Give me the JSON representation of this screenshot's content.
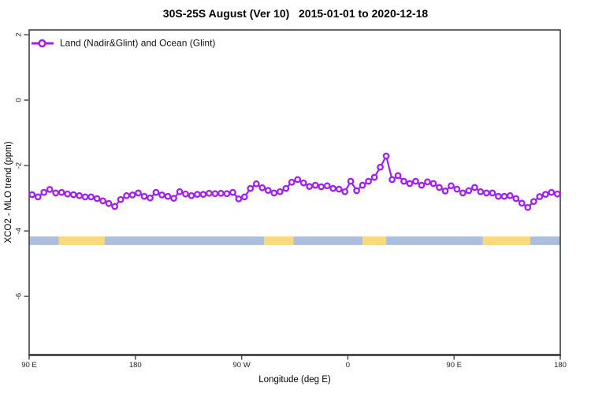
{
  "title": {
    "text": "30S-25S August (Ver 10)   2015-01-01 to 2020-12-18"
  },
  "legend": {
    "label": "Land (Nadir&Glint) and Ocean (Glint)",
    "position": "top-left"
  },
  "axes": {
    "x": {
      "title": "Longitude (deg E)",
      "ticks": [
        {
          "label": "90 E",
          "offset_deg": 0
        },
        {
          "label": "180",
          "offset_deg": 90
        },
        {
          "label": "90 W",
          "offset_deg": 180
        },
        {
          "label": "0",
          "offset_deg": 270
        },
        {
          "label": "90 E",
          "offset_deg": 360
        },
        {
          "label": "180",
          "offset_deg": 450
        }
      ],
      "wrap_note": "axis runs 90E -> 180 -> 90W -> 0 -> 90E -> 180 (450 deg span)"
    },
    "y": {
      "title": "XCO2 - MLO trend (ppm)",
      "ticks": [
        {
          "label": "2",
          "value": 2
        },
        {
          "label": "0",
          "value": 0
        },
        {
          "label": "-2",
          "value": -2
        },
        {
          "label": "-4",
          "value": -4
        },
        {
          "label": "-6",
          "value": -6
        }
      ]
    }
  },
  "colors": {
    "series": "#a020f0",
    "marker_fill": "#ffffff",
    "ocean_band": "#aabfde",
    "land_band": "#fcd87c",
    "frame": "#404040",
    "text": "#000000"
  },
  "chart_data": {
    "type": "line",
    "title": "30S-25S August (Ver 10)   2015-01-01 to 2020-12-18",
    "xlabel": "Longitude (deg E)",
    "ylabel": "XCO2 - MLO trend (ppm)",
    "ylim": [
      -7.78,
      2.145
    ],
    "xlim_offset_deg": [
      0,
      450
    ],
    "grid": false,
    "legend_position": "top-left-inside",
    "bin_width_deg": 5,
    "series": [
      {
        "name": "Land (Nadir&Glint) and Ocean (Glint)",
        "marker": "open-circle",
        "lon": [
          92.5,
          97.5,
          102.5,
          107.5,
          112.5,
          117.5,
          122.5,
          127.5,
          132.5,
          137.5,
          142.5,
          147.5,
          152.5,
          157.5,
          162.5,
          167.5,
          172.5,
          177.5,
          -177.5,
          -172.5,
          -167.5,
          -162.5,
          -157.5,
          -152.5,
          -147.5,
          -142.5,
          -137.5,
          -132.5,
          -127.5,
          -122.5,
          -117.5,
          -112.5,
          -107.5,
          -102.5,
          -97.5,
          -92.5,
          -87.5,
          -82.5,
          -77.5,
          -72.5,
          -67.5,
          -62.5,
          -57.5,
          -52.5,
          -47.5,
          -42.5,
          -37.5,
          -32.5,
          -27.5,
          -22.5,
          -17.5,
          -12.5,
          -7.5,
          -2.5,
          2.5,
          7.5,
          12.5,
          17.5,
          22.5,
          27.5,
          32.5,
          37.5,
          42.5,
          47.5,
          52.5,
          57.5,
          62.5,
          67.5,
          72.5,
          77.5,
          82.5,
          87.5,
          92.5,
          97.5,
          102.5,
          107.5,
          112.5,
          117.5,
          122.5,
          127.5,
          132.5,
          137.5,
          142.5,
          147.5,
          152.5,
          157.5,
          162.5,
          167.5,
          172.5,
          177.5
        ],
        "values": [
          -2.89,
          -2.96,
          -2.82,
          -2.73,
          -2.84,
          -2.82,
          -2.87,
          -2.89,
          -2.92,
          -2.96,
          -2.96,
          -3.01,
          -3.08,
          -3.16,
          -3.25,
          -3.04,
          -2.92,
          -2.9,
          -2.84,
          -2.94,
          -2.99,
          -2.82,
          -2.9,
          -2.94,
          -3.0,
          -2.8,
          -2.87,
          -2.92,
          -2.88,
          -2.88,
          -2.85,
          -2.86,
          -2.85,
          -2.86,
          -2.82,
          -3.02,
          -2.96,
          -2.7,
          -2.56,
          -2.68,
          -2.76,
          -2.84,
          -2.8,
          -2.7,
          -2.51,
          -2.43,
          -2.53,
          -2.64,
          -2.6,
          -2.65,
          -2.62,
          -2.7,
          -2.72,
          -2.8,
          -2.48,
          -2.77,
          -2.6,
          -2.48,
          -2.36,
          -2.05,
          -1.71,
          -2.43,
          -2.31,
          -2.48,
          -2.55,
          -2.48,
          -2.6,
          -2.5,
          -2.55,
          -2.67,
          -2.78,
          -2.62,
          -2.72,
          -2.84,
          -2.77,
          -2.67,
          -2.8,
          -2.84,
          -2.84,
          -2.94,
          -2.94,
          -2.92,
          -3.01,
          -3.15,
          -3.28,
          -3.1,
          -2.95,
          -2.88,
          -2.82,
          -2.87
        ]
      }
    ],
    "surface_band": {
      "y_top": -4.17,
      "y_bottom": -4.43,
      "segments": [
        {
          "surface": "ocean",
          "from_deg": 0,
          "to_deg": 25
        },
        {
          "surface": "land",
          "from_deg": 25,
          "to_deg": 64
        },
        {
          "surface": "ocean",
          "from_deg": 64,
          "to_deg": 199
        },
        {
          "surface": "land",
          "from_deg": 199,
          "to_deg": 224
        },
        {
          "surface": "ocean",
          "from_deg": 224,
          "to_deg": 282.5
        },
        {
          "surface": "land",
          "from_deg": 282.5,
          "to_deg": 302.5
        },
        {
          "surface": "ocean",
          "from_deg": 302.5,
          "to_deg": 384.5
        },
        {
          "surface": "land",
          "from_deg": 384.5,
          "to_deg": 424.5
        },
        {
          "surface": "ocean",
          "from_deg": 424.5,
          "to_deg": 450
        }
      ]
    }
  }
}
